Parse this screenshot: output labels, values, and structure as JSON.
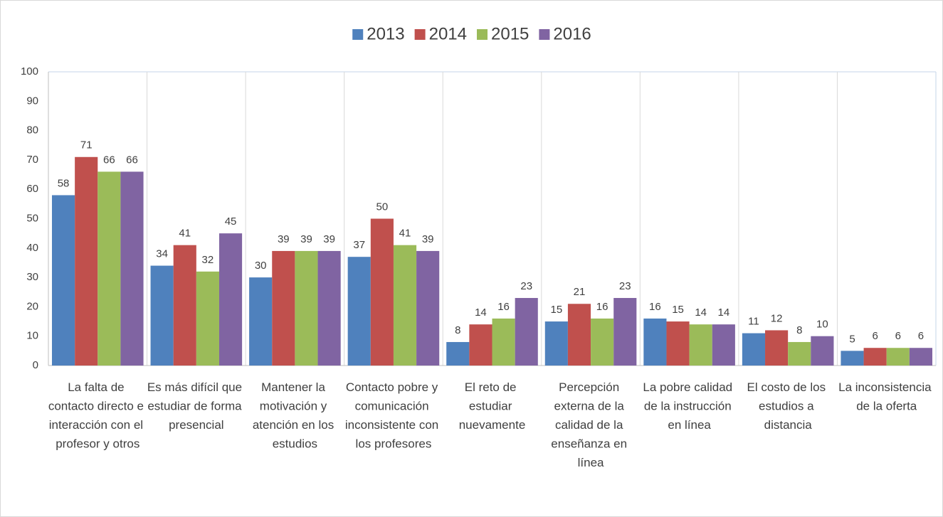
{
  "chart_data": {
    "type": "bar",
    "categories": [
      "La falta de contacto directo e interacción con el profesor y otros",
      "Es más difícil que estudiar de forma presencial",
      "Mantener la motivación y atención en los estudios",
      "Contacto pobre y comunicación inconsistente con los profesores",
      "El reto de estudiar nuevamente",
      "Percepción externa de la calidad de la enseñanza en línea",
      "La pobre calidad de la instrucción en línea",
      "El costo de los estudios a distancia",
      "La inconsistencia de la oferta"
    ],
    "series": [
      {
        "name": "2013",
        "color": "#4f81bd",
        "values": [
          58,
          34,
          30,
          37,
          8,
          15,
          16,
          11,
          5
        ]
      },
      {
        "name": "2014",
        "color": "#c0504d",
        "values": [
          71,
          41,
          39,
          50,
          14,
          21,
          15,
          12,
          6
        ]
      },
      {
        "name": "2015",
        "color": "#9bbb59",
        "values": [
          66,
          32,
          39,
          41,
          16,
          16,
          14,
          8,
          6
        ]
      },
      {
        "name": "2016",
        "color": "#8064a2",
        "values": [
          66,
          45,
          39,
          39,
          23,
          23,
          14,
          10,
          6
        ]
      }
    ],
    "ylim": [
      0,
      100
    ],
    "yticks": [
      0,
      10,
      20,
      30,
      40,
      50,
      60,
      70,
      80,
      90,
      100
    ],
    "grid": true,
    "legend": "top"
  }
}
